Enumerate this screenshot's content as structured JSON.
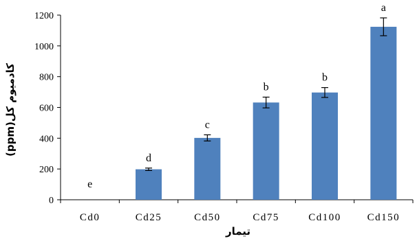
{
  "chart_data": {
    "type": "bar",
    "title": "",
    "xlabel": "تیمار",
    "ylabel": "کادمیوم کل(ppm)",
    "categories": [
      "Cd0",
      "Cd25",
      "Cd50",
      "Cd75",
      "Cd100",
      "Cd150"
    ],
    "values": [
      0,
      198,
      402,
      632,
      697,
      1124
    ],
    "errors": [
      0,
      8,
      20,
      35,
      32,
      58
    ],
    "significance_letters": [
      "e",
      "d",
      "c",
      "b",
      "b",
      "a"
    ],
    "ylim": [
      0,
      1200
    ],
    "yticks": [
      0,
      200,
      400,
      600,
      800,
      1000,
      1200
    ],
    "bar_color": "#4f81bd",
    "grid": false,
    "legend": "none"
  }
}
